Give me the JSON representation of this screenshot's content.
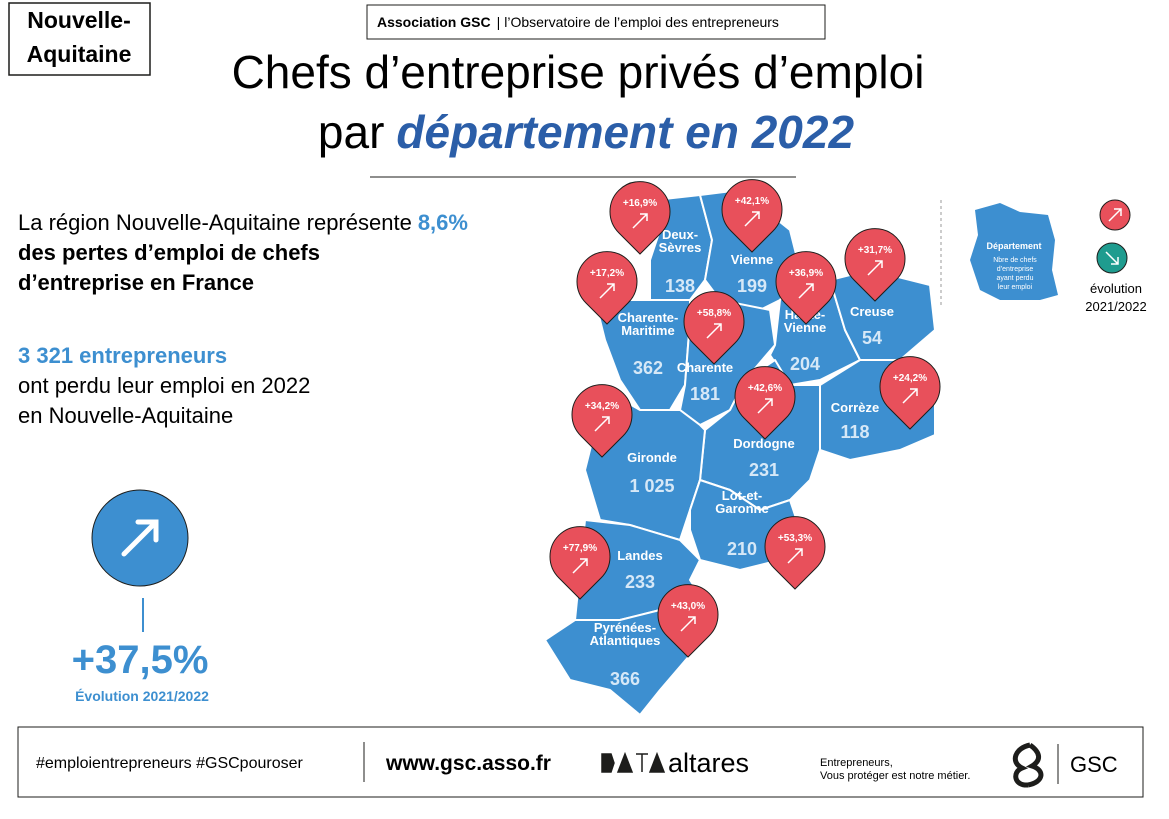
{
  "region_tag": [
    "Nouvelle-",
    "Aquitaine"
  ],
  "header": {
    "source": "Association GSC",
    "source_sub": "l’Observatoire de l’emploi des entrepreneurs",
    "title_line1": "Chefs d’entreprise privés d’emploi",
    "title_prefix": "par",
    "title_highlight": "département en 2022"
  },
  "stats": {
    "share_intro": "La région Nouvelle-Aquitaine représente",
    "share_value": "8,6%",
    "share_rest": [
      "des pertes d’emploi de chefs",
      "d’entreprise en France"
    ],
    "count_value": "3 321 entrepreneurs",
    "count_rest": [
      "ont perdu leur emploi en 2022",
      "en Nouvelle-Aquitaine"
    ]
  },
  "evolution": {
    "value": "+37,5%",
    "label": "Évolution 2021/2022"
  },
  "legend": {
    "department": "Département",
    "description": [
      "Nbre de chefs",
      "d’entreprise",
      "ayant perdu",
      "leur emploi"
    ],
    "evolution": [
      "évolution",
      "2021/2022"
    ]
  },
  "departments": [
    {
      "name": [
        "Deux-",
        "Sèvres"
      ],
      "count": "138",
      "evolution": "+16,9%"
    },
    {
      "name": [
        "Vienne"
      ],
      "count": "199",
      "evolution": "+42,1%"
    },
    {
      "name": [
        "Charente-",
        "Maritime"
      ],
      "count": "362",
      "evolution": "+17,2%"
    },
    {
      "name": [
        "Charente"
      ],
      "count": "181",
      "evolution": "+58,8%"
    },
    {
      "name": [
        "Haute-",
        "Vienne"
      ],
      "count": "204",
      "evolution": "+36,9%"
    },
    {
      "name": [
        "Creuse"
      ],
      "count": "54",
      "evolution": "+31,7%"
    },
    {
      "name": [
        "Corrèze"
      ],
      "count": "118",
      "evolution": "+24,2%"
    },
    {
      "name": [
        "Dordogne"
      ],
      "count": "231",
      "evolution": "+42,6%"
    },
    {
      "name": [
        "Gironde"
      ],
      "count": "1 025",
      "evolution": "+34,2%"
    },
    {
      "name": [
        "Lot-et-",
        "Garonne"
      ],
      "count": "210",
      "evolution": "+53,3%"
    },
    {
      "name": [
        "Landes"
      ],
      "count": "233",
      "evolution": "+77,9%"
    },
    {
      "name": [
        "Pyrénées-",
        "Atlantiques"
      ],
      "count": "366",
      "evolution": "+43,0%"
    }
  ],
  "footer": {
    "hashtags": "#emploientrepreneurs #GSCpouroser",
    "url": "www.gsc.asso.fr",
    "partner": "altares",
    "tagline": [
      "Entrepreneurs,",
      "Vous protéger est notre métier."
    ],
    "brand": "GSC"
  }
}
